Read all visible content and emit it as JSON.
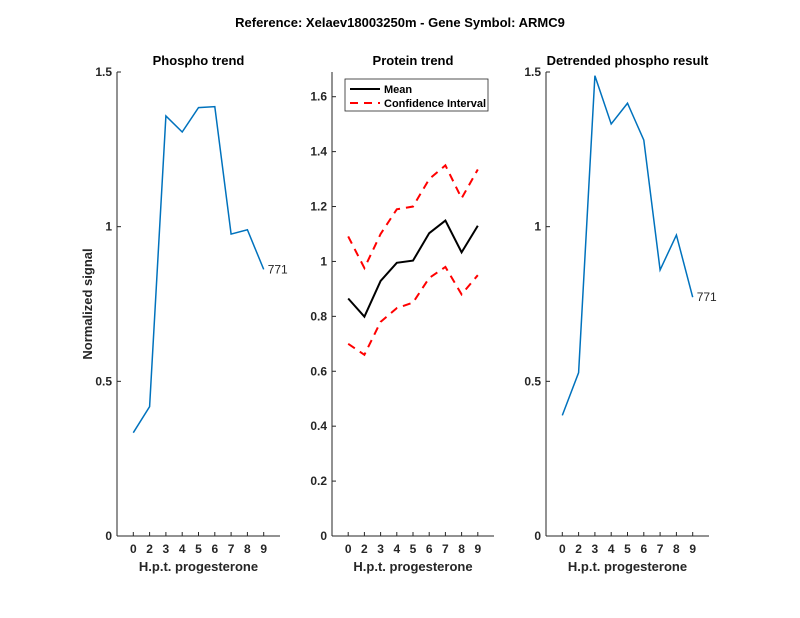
{
  "figure_title": "Reference:  Xelaev18003250m - Gene Symbol:  ARMC9",
  "colors": {
    "phospho": "#0072BD",
    "mean": "#000000",
    "ci": "#FF0000",
    "axis": "#262626"
  },
  "chart_data": [
    {
      "type": "line",
      "title": "Phospho trend",
      "xlabel": "H.p.t. progesterone",
      "ylabel": "Normalized signal",
      "categories": [
        "0",
        "2",
        "3",
        "4",
        "5",
        "6",
        "7",
        "8",
        "9"
      ],
      "ylim": [
        0,
        1.5
      ],
      "yticks": [
        0,
        0.5,
        1,
        1.5
      ],
      "ytick_labels": [
        "0",
        "0.5",
        "1",
        "1.5"
      ],
      "series": [
        {
          "name": "phospho",
          "values": [
            0.334,
            0.418,
            1.358,
            1.306,
            1.385,
            1.388,
            0.976,
            0.99,
            0.862
          ]
        }
      ],
      "annotation": "771"
    },
    {
      "type": "line",
      "title": "Protein trend",
      "xlabel": "H.p.t. progesterone",
      "ylabel": "",
      "categories": [
        "0",
        "2",
        "3",
        "4",
        "5",
        "6",
        "7",
        "8",
        "9"
      ],
      "ylim": [
        0,
        1.69
      ],
      "yticks": [
        0,
        0.2,
        0.4,
        0.6,
        0.8,
        1,
        1.2,
        1.4,
        1.6
      ],
      "ytick_labels": [
        "0",
        "0.2",
        "0.4",
        "0.6",
        "0.8",
        "1",
        "1.2",
        "1.4",
        "1.6"
      ],
      "legend": {
        "placement": "top-left",
        "entries": [
          "Mean",
          "Confidence Interval"
        ]
      },
      "series": [
        {
          "name": "Mean",
          "values": [
            0.865,
            0.799,
            0.929,
            0.995,
            1.003,
            1.103,
            1.149,
            1.033,
            1.13
          ]
        },
        {
          "name": "Confidence Interval upper",
          "values": [
            1.091,
            0.976,
            1.1,
            1.19,
            1.2,
            1.3,
            1.35,
            1.23,
            1.335
          ]
        },
        {
          "name": "Confidence Interval lower",
          "values": [
            0.7,
            0.66,
            0.78,
            0.83,
            0.85,
            0.94,
            0.98,
            0.88,
            0.95
          ]
        }
      ]
    },
    {
      "type": "line",
      "title": "Detrended phospho result",
      "xlabel": "H.p.t. progesterone",
      "ylabel": "",
      "categories": [
        "0",
        "2",
        "3",
        "4",
        "5",
        "6",
        "7",
        "8",
        "9"
      ],
      "ylim": [
        0,
        1.5
      ],
      "yticks": [
        0,
        0.5,
        1,
        1.5
      ],
      "ytick_labels": [
        "0",
        "0.5",
        "1",
        "1.5"
      ],
      "series": [
        {
          "name": "detrended",
          "values": [
            0.39,
            0.528,
            1.488,
            1.332,
            1.399,
            1.28,
            0.86,
            0.973,
            0.772
          ]
        }
      ],
      "annotation": "771"
    }
  ]
}
